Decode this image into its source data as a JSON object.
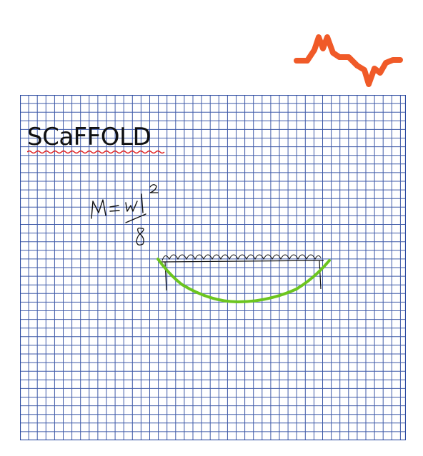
{
  "page": {
    "title_text": "SCaFFOLD",
    "formula": {
      "lhs": "M",
      "equals": "=",
      "numerator": "wl",
      "exponent": "2",
      "denominator": "8"
    }
  },
  "colors": {
    "background": "#ffffff",
    "grid_line": "#3f5aa8",
    "grid_border": "#2b4aa0",
    "ink": "#111111",
    "logo_orange": "#f05a28",
    "moment_curve_green": "#6cc51f",
    "spell_squiggle_red": "#e01b1b"
  },
  "icons": {
    "logo": "orange-wave-logo-icon",
    "beam": "loaded-beam-sketch",
    "curve": "bending-moment-curve"
  }
}
